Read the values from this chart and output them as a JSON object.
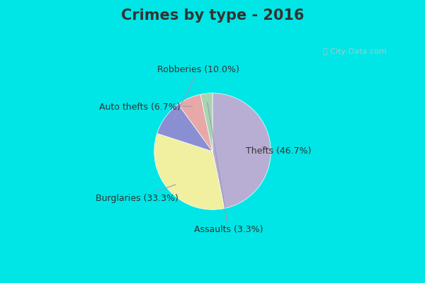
{
  "title": "Crimes by type - 2016",
  "labels": [
    "Thefts",
    "Burglaries",
    "Robberies",
    "Auto thefts",
    "Assaults"
  ],
  "values": [
    46.7,
    33.3,
    10.0,
    6.7,
    3.3
  ],
  "colors": [
    "#b8aed4",
    "#f0f0a0",
    "#8a8fd4",
    "#e8a8a8",
    "#a8d4b0"
  ],
  "bg_cyan": "#00e5e5",
  "bg_mint": "#d8f0e0",
  "title_fontsize": 15,
  "label_fontsize": 9,
  "startangle": 90,
  "title_color": "#333333",
  "label_color": "#333333",
  "watermark_color": "#aacccc"
}
